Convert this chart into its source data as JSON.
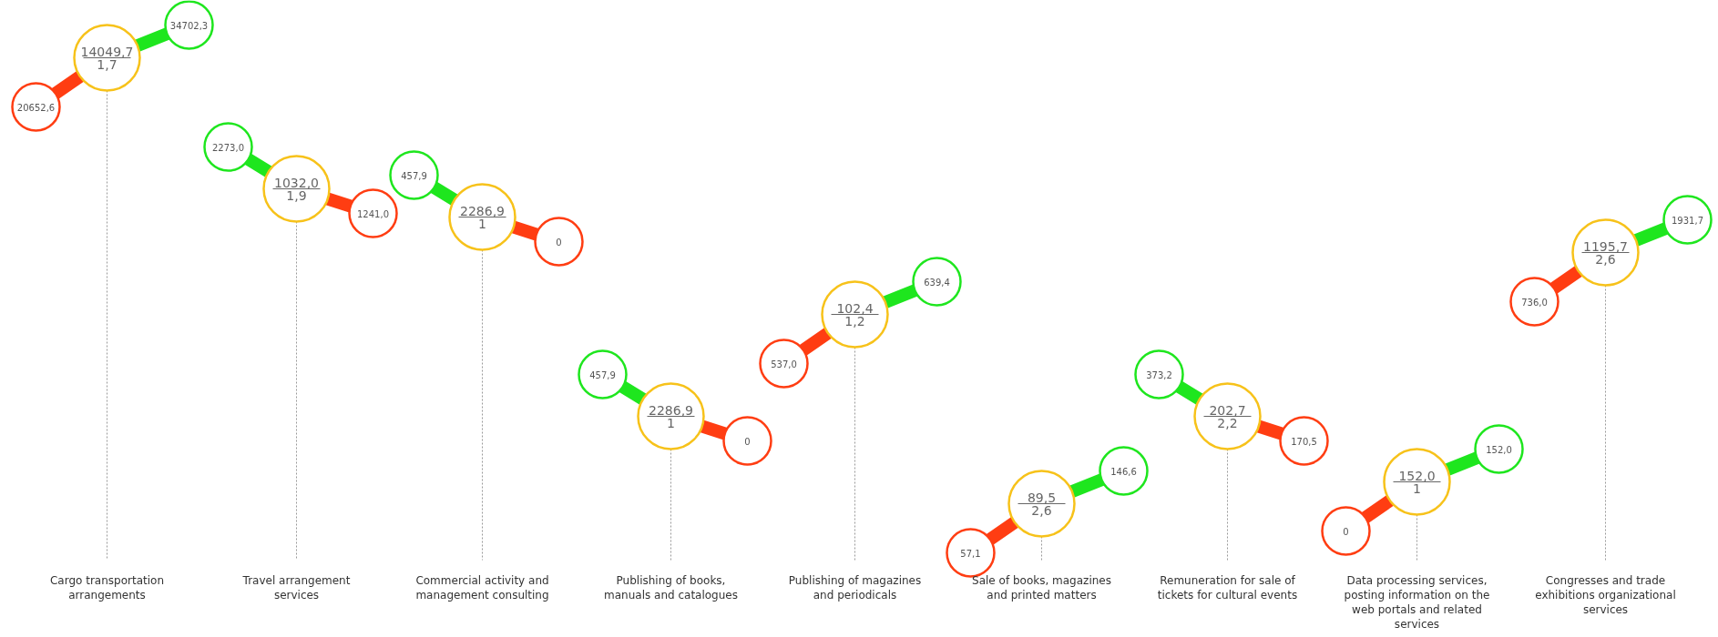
{
  "chart_data": {
    "type": "other",
    "categories": [
      "Cargo transportation\narrangements",
      "Travel arrangement\nservices",
      "Commercial activity and\nmanagement consulting",
      "Publishing of books,\nmanuals and catalogues",
      "Publishing of magazines\nand periodicals",
      "Sale of books, magazines\nand printed matters",
      "Remuneration for sale of\ntickets for cultural events",
      "Data processing services,\nposting information on the\nweb portals and related\nservices",
      "Congresses and trade\nexhibitions organizational\nservices"
    ],
    "series": [
      {
        "color": "#f7c21a",
        "values": [
          14049.7,
          1032.0,
          2286.9,
          2286.9,
          102.4,
          89.5,
          202.7,
          152.0,
          1195.7
        ],
        "value_labels": [
          "14049,7",
          "1032,0",
          "2286,9",
          "2286,9",
          "102,4",
          "89,5",
          "202,7",
          "152,0",
          "1195,7"
        ]
      },
      {
        "color": "#666666",
        "values": [
          1.7,
          1.9,
          1,
          1,
          1.2,
          2.6,
          2.2,
          1,
          2.6
        ],
        "value_labels": [
          "1,7",
          "1,9",
          "1",
          "1",
          "1,2",
          "2,6",
          "2,2",
          "1",
          "2,6"
        ]
      },
      {
        "color": "#1ee61e",
        "values": [
          34702.3,
          2273.0,
          457.9,
          457.9,
          639.4,
          146.6,
          373.2,
          152.0,
          1931.7
        ],
        "value_labels": [
          "34702,3",
          "2273,0",
          "457,9",
          "457,9",
          "639,4",
          "146,6",
          "373,2",
          "152,0",
          "1931,7"
        ]
      },
      {
        "color": "#ff3d12",
        "values": [
          20652.6,
          1241.0,
          0,
          0,
          537.0,
          57.1,
          170.5,
          0,
          736.0
        ],
        "value_labels": [
          "20652,6",
          "1241,0",
          "0",
          "0",
          "537,0",
          "57,1",
          "170,5",
          "0",
          "736,0"
        ]
      }
    ]
  }
}
